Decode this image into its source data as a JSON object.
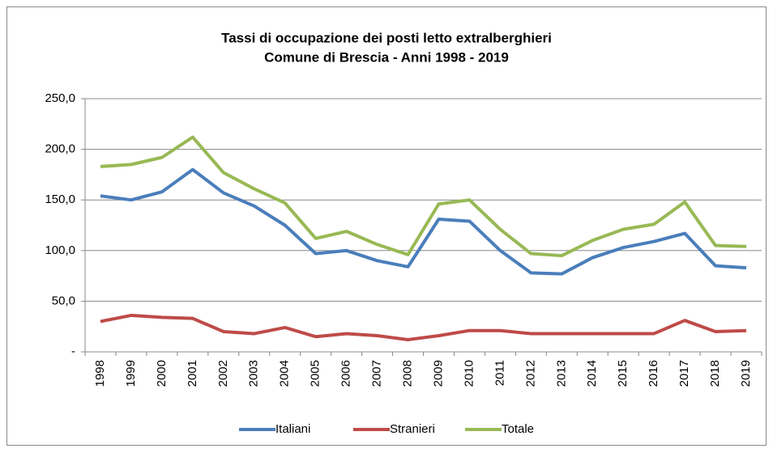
{
  "chart_data": {
    "type": "line",
    "title": [
      "Tassi di occupazione dei posti letto extralberghieri",
      "Comune di Brescia - Anni 1998 - 2019"
    ],
    "categories": [
      "1998",
      "1999",
      "2000",
      "2001",
      "2002",
      "2003",
      "2004",
      "2005",
      "2006",
      "2007",
      "2008",
      "2009",
      "2010",
      "2011",
      "2012",
      "2013",
      "2014",
      "2015",
      "2016",
      "2017",
      "2018",
      "2019"
    ],
    "series": [
      {
        "name": "Italiani",
        "color": "#4a7ebb",
        "values": [
          154,
          150,
          158,
          180,
          157,
          144,
          125,
          97,
          100,
          90,
          84,
          131,
          129,
          100,
          78,
          77,
          93,
          103,
          109,
          117,
          85,
          83
        ]
      },
      {
        "name": "Stranieri",
        "color": "#be4b48",
        "values": [
          30,
          36,
          34,
          33,
          20,
          18,
          24,
          15,
          18,
          16,
          12,
          16,
          21,
          21,
          18,
          18,
          18,
          18,
          18,
          31,
          20,
          21
        ]
      },
      {
        "name": "Totale",
        "color": "#98b954",
        "values": [
          183,
          185,
          192,
          212,
          177,
          161,
          147,
          112,
          119,
          106,
          96,
          146,
          150,
          121,
          97,
          95,
          110,
          121,
          126,
          148,
          105,
          104
        ]
      }
    ],
    "ylim": [
      0,
      250
    ],
    "yticks": [
      {
        "value": 0,
        "label": "-"
      },
      {
        "value": 50,
        "label": "50,0"
      },
      {
        "value": 100,
        "label": "100,0"
      },
      {
        "value": 150,
        "label": "150,0"
      },
      {
        "value": 200,
        "label": "200,0"
      },
      {
        "value": 250,
        "label": "250,0"
      }
    ],
    "grid": true,
    "legend": "bottom"
  }
}
